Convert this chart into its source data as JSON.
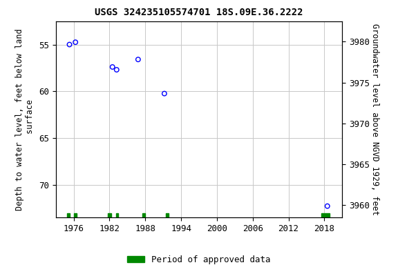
{
  "title": "USGS 324235105574701 18S.09E.36.2222",
  "ylabel_left": "Depth to water level, feet below land\n surface",
  "ylabel_right": "Groundwater level above NGVD 1929, feet",
  "data_points": [
    {
      "year": 1975.3,
      "depth": 55.0
    },
    {
      "year": 1976.3,
      "depth": 54.75
    },
    {
      "year": 1982.5,
      "depth": 57.4
    },
    {
      "year": 1983.2,
      "depth": 57.7
    },
    {
      "year": 1986.8,
      "depth": 56.6
    },
    {
      "year": 1991.2,
      "depth": 60.25
    },
    {
      "year": 2018.5,
      "depth": 72.3
    }
  ],
  "approved_periods": [
    [
      1974.9,
      1975.4
    ],
    [
      1976.0,
      1976.5
    ],
    [
      1981.7,
      1982.3
    ],
    [
      1983.1,
      1983.5
    ],
    [
      1987.5,
      1988.0
    ],
    [
      1991.5,
      1991.9
    ],
    [
      2017.5,
      2018.9
    ]
  ],
  "xlim": [
    1973,
    2021
  ],
  "xticks": [
    1976,
    1982,
    1988,
    1994,
    2000,
    2006,
    2012,
    2018
  ],
  "ylim_left": [
    73.5,
    52.5
  ],
  "ylim_right": [
    3958.5,
    3982.5
  ],
  "yticks_left": [
    55,
    60,
    65,
    70
  ],
  "yticks_right": [
    3960,
    3965,
    3970,
    3975,
    3980
  ],
  "grid_color": "#c8c8c8",
  "point_color": "blue",
  "approved_color": "#008800",
  "bg_color": "#ffffff",
  "title_fontsize": 10,
  "label_fontsize": 8.5,
  "tick_fontsize": 9,
  "legend_fontsize": 9
}
